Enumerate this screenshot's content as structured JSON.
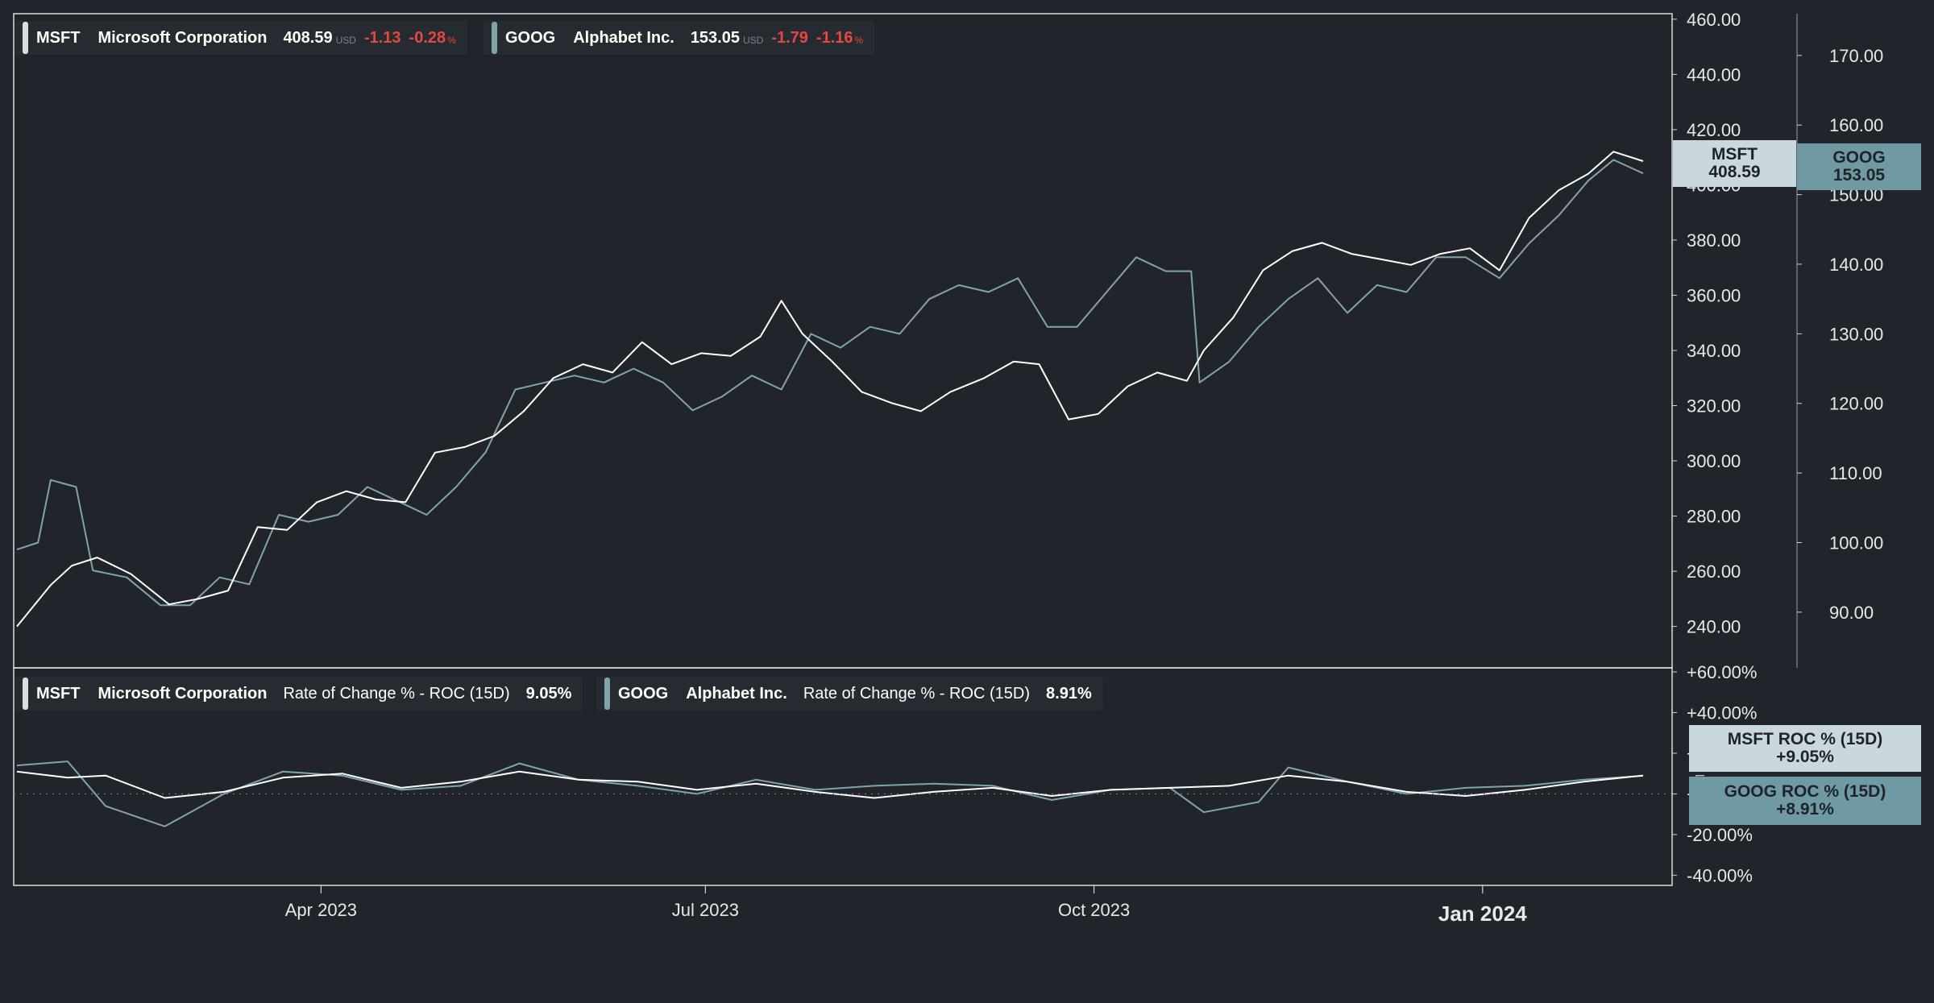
{
  "chart_data": [
    {
      "type": "line",
      "panel": "price",
      "axes": {
        "left_scale": {
          "series": "MSFT",
          "ylim": [
            225,
            462
          ],
          "ticks": [
            "460.00",
            "440.00",
            "420.00",
            "400.00",
            "380.00",
            "360.00",
            "340.00",
            "320.00",
            "300.00",
            "280.00",
            "260.00",
            "240.00"
          ]
        },
        "right_scale": {
          "series": "GOOG",
          "ylim": [
            82,
            176
          ],
          "ticks": [
            "170.00",
            "160.00",
            "150.00",
            "140.00",
            "130.00",
            "120.00",
            "110.00",
            "100.00",
            "90.00"
          ]
        }
      },
      "x_ticks": [
        "Apr 2023",
        "Jul 2023",
        "Oct 2023",
        "Jan 2024"
      ],
      "x_range": [
        "2023-01-19",
        "2024-02-08"
      ],
      "series": [
        {
          "name": "MSFT",
          "scale": "left",
          "points": [
            [
              "2023-01-19",
              240
            ],
            [
              "2023-01-27",
              255
            ],
            [
              "2023-02-01",
              262
            ],
            [
              "2023-02-07",
              265
            ],
            [
              "2023-02-15",
              259
            ],
            [
              "2023-02-24",
              248
            ],
            [
              "2023-03-03",
              250
            ],
            [
              "2023-03-10",
              253
            ],
            [
              "2023-03-17",
              276
            ],
            [
              "2023-03-24",
              275
            ],
            [
              "2023-03-31",
              285
            ],
            [
              "2023-04-07",
              289
            ],
            [
              "2023-04-14",
              286
            ],
            [
              "2023-04-21",
              285
            ],
            [
              "2023-04-28",
              303
            ],
            [
              "2023-05-05",
              305
            ],
            [
              "2023-05-12",
              309
            ],
            [
              "2023-05-19",
              318
            ],
            [
              "2023-05-26",
              330
            ],
            [
              "2023-06-02",
              335
            ],
            [
              "2023-06-09",
              332
            ],
            [
              "2023-06-16",
              343
            ],
            [
              "2023-06-23",
              335
            ],
            [
              "2023-06-30",
              339
            ],
            [
              "2023-07-07",
              338
            ],
            [
              "2023-07-14",
              345
            ],
            [
              "2023-07-19",
              358
            ],
            [
              "2023-07-24",
              346
            ],
            [
              "2023-07-31",
              336
            ],
            [
              "2023-08-07",
              325
            ],
            [
              "2023-08-14",
              321
            ],
            [
              "2023-08-21",
              318
            ],
            [
              "2023-08-28",
              325
            ],
            [
              "2023-09-05",
              330
            ],
            [
              "2023-09-12",
              336
            ],
            [
              "2023-09-18",
              335
            ],
            [
              "2023-09-25",
              315
            ],
            [
              "2023-10-02",
              317
            ],
            [
              "2023-10-09",
              327
            ],
            [
              "2023-10-16",
              332
            ],
            [
              "2023-10-23",
              329
            ],
            [
              "2023-10-27",
              340
            ],
            [
              "2023-11-03",
              352
            ],
            [
              "2023-11-10",
              369
            ],
            [
              "2023-11-17",
              376
            ],
            [
              "2023-11-24",
              379
            ],
            [
              "2023-12-01",
              375
            ],
            [
              "2023-12-08",
              373
            ],
            [
              "2023-12-15",
              371
            ],
            [
              "2023-12-22",
              375
            ],
            [
              "2023-12-29",
              377
            ],
            [
              "2024-01-05",
              369
            ],
            [
              "2024-01-12",
              388
            ],
            [
              "2024-01-19",
              398
            ],
            [
              "2024-01-26",
              404
            ],
            [
              "2024-02-01",
              412
            ],
            [
              "2024-02-08",
              408.59
            ]
          ]
        },
        {
          "name": "GOOG",
          "scale": "right",
          "points": [
            [
              "2023-01-19",
              99
            ],
            [
              "2023-01-24",
              100
            ],
            [
              "2023-01-27",
              109
            ],
            [
              "2023-02-02",
              108
            ],
            [
              "2023-02-06",
              96
            ],
            [
              "2023-02-14",
              95
            ],
            [
              "2023-02-22",
              91
            ],
            [
              "2023-03-01",
              91
            ],
            [
              "2023-03-08",
              95
            ],
            [
              "2023-03-15",
              94
            ],
            [
              "2023-03-22",
              104
            ],
            [
              "2023-03-29",
              103
            ],
            [
              "2023-04-05",
              104
            ],
            [
              "2023-04-12",
              108
            ],
            [
              "2023-04-19",
              106
            ],
            [
              "2023-04-26",
              104
            ],
            [
              "2023-05-03",
              108
            ],
            [
              "2023-05-10",
              113
            ],
            [
              "2023-05-17",
              122
            ],
            [
              "2023-05-24",
              123
            ],
            [
              "2023-05-31",
              124
            ],
            [
              "2023-06-07",
              123
            ],
            [
              "2023-06-14",
              125
            ],
            [
              "2023-06-21",
              123
            ],
            [
              "2023-06-28",
              119
            ],
            [
              "2023-07-05",
              121
            ],
            [
              "2023-07-12",
              124
            ],
            [
              "2023-07-19",
              122
            ],
            [
              "2023-07-26",
              130
            ],
            [
              "2023-08-02",
              128
            ],
            [
              "2023-08-09",
              131
            ],
            [
              "2023-08-16",
              130
            ],
            [
              "2023-08-23",
              135
            ],
            [
              "2023-08-30",
              137
            ],
            [
              "2023-09-06",
              136
            ],
            [
              "2023-09-13",
              138
            ],
            [
              "2023-09-20",
              131
            ],
            [
              "2023-09-27",
              131
            ],
            [
              "2023-10-04",
              136
            ],
            [
              "2023-10-11",
              141
            ],
            [
              "2023-10-18",
              139
            ],
            [
              "2023-10-24",
              139
            ],
            [
              "2023-10-26",
              123
            ],
            [
              "2023-11-02",
              126
            ],
            [
              "2023-11-09",
              131
            ],
            [
              "2023-11-16",
              135
            ],
            [
              "2023-11-23",
              138
            ],
            [
              "2023-11-30",
              133
            ],
            [
              "2023-12-07",
              137
            ],
            [
              "2023-12-14",
              136
            ],
            [
              "2023-12-21",
              141
            ],
            [
              "2023-12-28",
              141
            ],
            [
              "2024-01-05",
              138
            ],
            [
              "2024-01-12",
              143
            ],
            [
              "2024-01-19",
              147
            ],
            [
              "2024-01-26",
              152
            ],
            [
              "2024-02-01",
              155
            ],
            [
              "2024-02-08",
              153.05
            ]
          ]
        }
      ]
    },
    {
      "type": "line",
      "panel": "indicator",
      "indicator": "Rate of Change % - ROC (15D)",
      "axes": {
        "ylim": [
          -45,
          62
        ],
        "ticks": [
          "+60.00%",
          "+40.00%",
          "+20.00%",
          "+0.00%",
          "-20.00%",
          "-40.00%"
        ]
      },
      "series": [
        {
          "name": "MSFT",
          "points": [
            [
              "2023-01-19",
              11
            ],
            [
              "2023-01-31",
              8
            ],
            [
              "2023-02-09",
              9
            ],
            [
              "2023-02-23",
              -2
            ],
            [
              "2023-03-09",
              1
            ],
            [
              "2023-03-23",
              8
            ],
            [
              "2023-04-06",
              10
            ],
            [
              "2023-04-20",
              3
            ],
            [
              "2023-05-04",
              6
            ],
            [
              "2023-05-18",
              11
            ],
            [
              "2023-06-01",
              7
            ],
            [
              "2023-06-15",
              6
            ],
            [
              "2023-06-29",
              2
            ],
            [
              "2023-07-13",
              5
            ],
            [
              "2023-07-27",
              1
            ],
            [
              "2023-08-10",
              -2
            ],
            [
              "2023-08-24",
              1
            ],
            [
              "2023-09-07",
              3
            ],
            [
              "2023-09-21",
              -1
            ],
            [
              "2023-10-05",
              2
            ],
            [
              "2023-10-19",
              3
            ],
            [
              "2023-11-02",
              4
            ],
            [
              "2023-11-16",
              9
            ],
            [
              "2023-11-30",
              6
            ],
            [
              "2023-12-14",
              1
            ],
            [
              "2023-12-28",
              -1
            ],
            [
              "2024-01-11",
              2
            ],
            [
              "2024-01-25",
              6
            ],
            [
              "2024-02-08",
              9.05
            ]
          ]
        },
        {
          "name": "GOOG",
          "points": [
            [
              "2023-01-19",
              14
            ],
            [
              "2023-01-31",
              16
            ],
            [
              "2023-02-09",
              -6
            ],
            [
              "2023-02-23",
              -16
            ],
            [
              "2023-03-09",
              0
            ],
            [
              "2023-03-23",
              11
            ],
            [
              "2023-04-06",
              9
            ],
            [
              "2023-04-20",
              2
            ],
            [
              "2023-05-04",
              4
            ],
            [
              "2023-05-18",
              15
            ],
            [
              "2023-06-01",
              7
            ],
            [
              "2023-06-15",
              4
            ],
            [
              "2023-06-29",
              0
            ],
            [
              "2023-07-13",
              7
            ],
            [
              "2023-07-27",
              2
            ],
            [
              "2023-08-10",
              4
            ],
            [
              "2023-08-24",
              5
            ],
            [
              "2023-09-07",
              4
            ],
            [
              "2023-09-21",
              -3
            ],
            [
              "2023-10-05",
              2
            ],
            [
              "2023-10-19",
              3
            ],
            [
              "2023-10-27",
              -9
            ],
            [
              "2023-11-09",
              -4
            ],
            [
              "2023-11-16",
              13
            ],
            [
              "2023-11-30",
              6
            ],
            [
              "2023-12-14",
              0
            ],
            [
              "2023-12-28",
              3
            ],
            [
              "2024-01-11",
              4
            ],
            [
              "2024-01-25",
              7
            ],
            [
              "2024-02-08",
              8.91
            ]
          ]
        }
      ]
    }
  ],
  "legend": {
    "price": [
      {
        "symbol": "MSFT",
        "name": "Microsoft Corporation",
        "price": "408.59",
        "currency": "USD",
        "change": "-1.13",
        "change_pct": "-0.28",
        "pct_suffix": "%"
      },
      {
        "symbol": "GOOG",
        "name": "Alphabet Inc.",
        "price": "153.05",
        "currency": "USD",
        "change": "-1.79",
        "change_pct": "-1.16",
        "pct_suffix": "%"
      }
    ],
    "indicator": [
      {
        "symbol": "MSFT",
        "name": "Microsoft Corporation",
        "indicator": "Rate of Change % - ROC (15D)",
        "value": "9.05%"
      },
      {
        "symbol": "GOOG",
        "name": "Alphabet Inc.",
        "indicator": "Rate of Change % - ROC (15D)",
        "value": "8.91%"
      }
    ]
  },
  "badges": {
    "msft_price": {
      "line1": "MSFT",
      "line2": "408.59"
    },
    "goog_price": {
      "line1": "GOOG",
      "line2": "153.05"
    },
    "msft_roc": {
      "line1": "MSFT ROC % (15D)",
      "line2": "+9.05%"
    },
    "goog_roc": {
      "line1": "GOOG ROC % (15D)",
      "line2": "+8.91%"
    }
  },
  "colors": {
    "background": "#21252b",
    "msft": "#ffffff",
    "goog": "#7fa5ab",
    "msft_badge": "#c9d8dc",
    "goog_badge": "#6f9aa3",
    "negative": "#e5483f",
    "axis_text": "#e6e9ec",
    "panel_border": "#d9dde1"
  }
}
